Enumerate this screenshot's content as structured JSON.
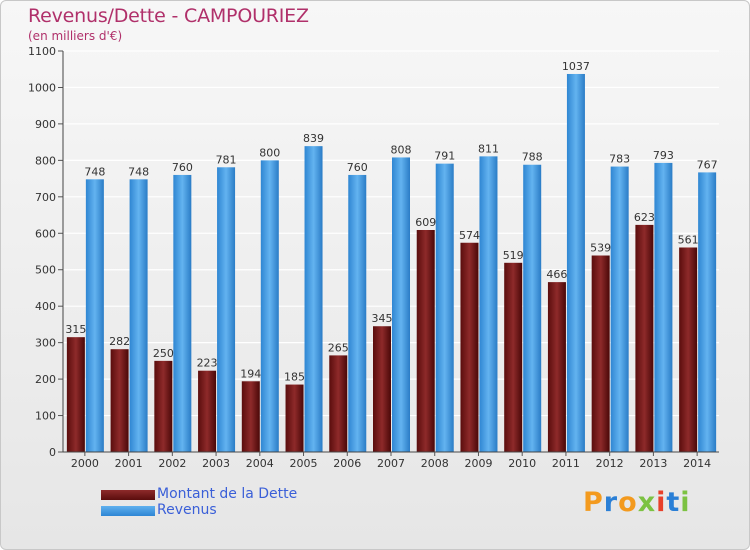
{
  "title": "Revenus/Dette - CAMPOURIEZ",
  "subtitle": "(en milliers d'€)",
  "colors": {
    "title": "#b0306a",
    "dette": "#7a1a1a",
    "revenus": "#3d97e0",
    "legend_text": "#3a5fd8"
  },
  "legend": {
    "dette": "Montant de la Dette",
    "revenus": "Revenus"
  },
  "logo": {
    "text": "Proxiti",
    "letter_colors": [
      "#f39a1e",
      "#2a7fd6",
      "#f39a1e",
      "#7cc242",
      "#e8402a",
      "#2a7fd6",
      "#7cc242"
    ]
  },
  "chart_data": {
    "type": "bar",
    "categories": [
      "2000",
      "2001",
      "2002",
      "2003",
      "2004",
      "2005",
      "2006",
      "2007",
      "2008",
      "2009",
      "2010",
      "2011",
      "2012",
      "2013",
      "2014"
    ],
    "series": [
      {
        "name": "Montant de la Dette",
        "values": [
          315,
          282,
          250,
          223,
          194,
          185,
          265,
          345,
          609,
          574,
          519,
          466,
          539,
          623,
          561
        ]
      },
      {
        "name": "Revenus",
        "values": [
          748,
          748,
          760,
          781,
          800,
          839,
          760,
          808,
          791,
          811,
          788,
          1037,
          783,
          793,
          767
        ]
      }
    ],
    "yticks": [
      "0",
      "100",
      "200",
      "300",
      "400",
      "500",
      "600",
      "700",
      "800",
      "900",
      "1000",
      "1100"
    ],
    "ylim": [
      0,
      1100
    ],
    "grid": true,
    "legend_position": "bottom-left"
  }
}
